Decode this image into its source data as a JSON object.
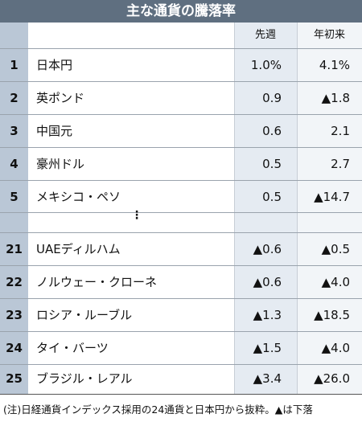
{
  "title": "主な通貨の騰落率",
  "columns": {
    "week": "先週",
    "ytd": "年初来"
  },
  "ellipsis": "⋮",
  "rows_top": [
    {
      "rank": "1",
      "name": "日本円",
      "week": "1.0%",
      "ytd": "4.1%"
    },
    {
      "rank": "2",
      "name": "英ポンド",
      "week": "0.9",
      "ytd": "▲1.8"
    },
    {
      "rank": "3",
      "name": "中国元",
      "week": "0.6",
      "ytd": "2.1"
    },
    {
      "rank": "4",
      "name": "豪州ドル",
      "week": "0.5",
      "ytd": "2.7"
    },
    {
      "rank": "5",
      "name": "メキシコ・ペソ",
      "week": "0.5",
      "ytd": "▲14.7"
    }
  ],
  "rows_bottom": [
    {
      "rank": "21",
      "name": "UAEディルハム",
      "week": "▲0.6",
      "ytd": "▲0.5"
    },
    {
      "rank": "22",
      "name": "ノルウェー・クローネ",
      "week": "▲0.6",
      "ytd": "▲4.0"
    },
    {
      "rank": "23",
      "name": "ロシア・ルーブル",
      "week": "▲1.3",
      "ytd": "▲18.5"
    },
    {
      "rank": "24",
      "name": "タイ・バーツ",
      "week": "▲1.5",
      "ytd": "▲4.0"
    },
    {
      "rank": "25",
      "name": "ブラジル・レアル",
      "week": "▲3.4",
      "ytd": "▲26.0"
    }
  ],
  "note": "(注)日経通貨インデックス採用の24通貨と日本円から抜粋。▲は下落"
}
